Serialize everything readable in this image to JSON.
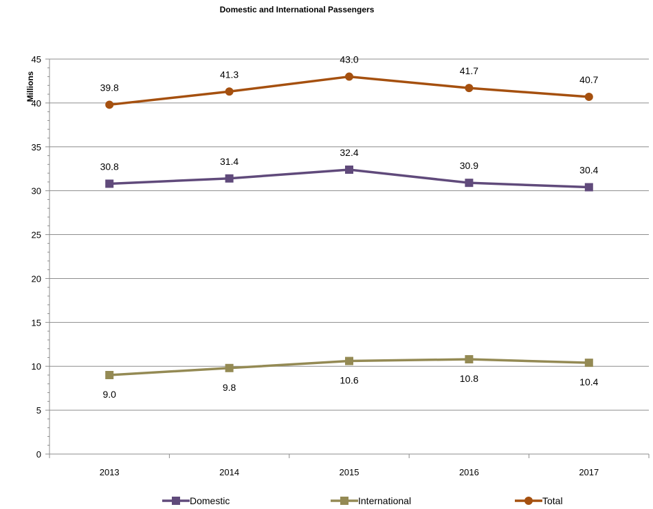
{
  "chart_data": {
    "type": "line",
    "title": "Domestic and International Passengers",
    "ylabel": "Millions",
    "xlabel": "",
    "categories": [
      "2013",
      "2014",
      "2015",
      "2016",
      "2017"
    ],
    "ylim": [
      0,
      45
    ],
    "yticks": [
      0,
      5,
      10,
      15,
      20,
      25,
      30,
      35,
      40,
      45
    ],
    "grid": true,
    "legend_position": "bottom",
    "series": [
      {
        "name": "Domestic",
        "values": [
          30.8,
          31.4,
          32.4,
          30.9,
          30.4
        ],
        "labels": [
          "30.8",
          "31.4",
          "32.4",
          "30.9",
          "30.4"
        ],
        "color": "#604A7B",
        "marker": "square",
        "label_position": "above"
      },
      {
        "name": "International",
        "values": [
          9.0,
          9.8,
          10.6,
          10.8,
          10.4
        ],
        "labels": [
          "9.0",
          "9.8",
          "10.6",
          "10.8",
          "10.4"
        ],
        "color": "#948A54",
        "marker": "square",
        "label_position": "below"
      },
      {
        "name": "Total",
        "values": [
          39.8,
          41.3,
          43.0,
          41.7,
          40.7
        ],
        "labels": [
          "39.8",
          "41.3",
          "43.0",
          "41.7",
          "40.7"
        ],
        "color": "#A5500F",
        "marker": "circle",
        "label_position": "above"
      }
    ]
  }
}
